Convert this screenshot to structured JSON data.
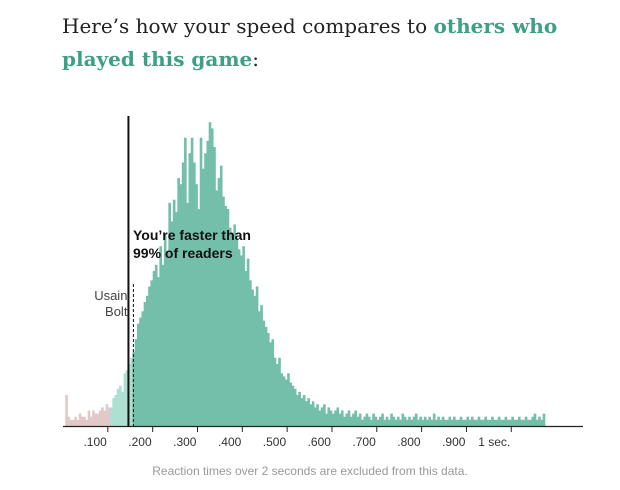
{
  "headline": {
    "lead": "Here’s how your speed compares to ",
    "accent": "others who played this game",
    "tail": ":"
  },
  "footnote": "Reaction times over 2 seconds are excluded from this data.",
  "colors": {
    "bar_main": "#74bfaa",
    "bar_light": "#aee0d2",
    "bar_faint": "#e2c9c9",
    "accent": "#3d9f86",
    "marker": "#111111"
  },
  "chart_data": {
    "type": "bar",
    "title": "",
    "xlabel": "",
    "ylabel": "",
    "x_unit": "seconds",
    "xlim": [
      0.0,
      1.16
    ],
    "ylim": [
      0,
      1
    ],
    "grid": false,
    "x_ticks": [
      {
        "value": 0.1,
        "label": ".100"
      },
      {
        "value": 0.2,
        "label": ".200"
      },
      {
        "value": 0.3,
        "label": ".300"
      },
      {
        "value": 0.4,
        "label": ".400"
      },
      {
        "value": 0.5,
        "label": ".500"
      },
      {
        "value": 0.6,
        "label": ".600"
      },
      {
        "value": 0.7,
        "label": ".700"
      },
      {
        "value": 0.8,
        "label": ".800"
      },
      {
        "value": 0.9,
        "label": ".900"
      },
      {
        "value": 1.0,
        "label": "1 sec."
      }
    ],
    "bin_width": 0.005,
    "bin_start": 0.005,
    "relative_frequency": [
      0.1,
      0.03,
      0.02,
      0.02,
      0.03,
      0.02,
      0.04,
      0.03,
      0.03,
      0.02,
      0.05,
      0.03,
      0.05,
      0.04,
      0.04,
      0.05,
      0.06,
      0.05,
      0.07,
      0.06,
      0.06,
      0.09,
      0.1,
      0.12,
      0.13,
      0.11,
      0.17,
      0.18,
      0.2,
      0.22,
      0.24,
      0.28,
      0.33,
      0.35,
      0.37,
      0.4,
      0.42,
      0.45,
      0.47,
      0.5,
      0.52,
      0.48,
      0.58,
      0.52,
      0.62,
      0.56,
      0.72,
      0.66,
      0.73,
      0.69,
      0.8,
      0.78,
      0.85,
      0.93,
      0.72,
      0.88,
      0.93,
      0.85,
      0.78,
      0.7,
      0.93,
      0.83,
      0.88,
      0.92,
      0.98,
      0.96,
      0.9,
      0.76,
      0.8,
      0.84,
      0.74,
      0.71,
      0.7,
      0.64,
      0.62,
      0.65,
      0.6,
      0.57,
      0.55,
      0.58,
      0.5,
      0.54,
      0.47,
      0.44,
      0.42,
      0.45,
      0.37,
      0.39,
      0.34,
      0.32,
      0.3,
      0.27,
      0.28,
      0.22,
      0.2,
      0.22,
      0.17,
      0.16,
      0.15,
      0.17,
      0.14,
      0.13,
      0.12,
      0.1,
      0.11,
      0.09,
      0.1,
      0.08,
      0.09,
      0.07,
      0.08,
      0.06,
      0.07,
      0.05,
      0.06,
      0.07,
      0.04,
      0.06,
      0.05,
      0.04,
      0.05,
      0.06,
      0.04,
      0.05,
      0.03,
      0.04,
      0.05,
      0.03,
      0.04,
      0.05,
      0.03,
      0.04,
      0.02,
      0.03,
      0.04,
      0.03,
      0.02,
      0.04,
      0.03,
      0.02,
      0.03,
      0.04,
      0.02,
      0.03,
      0.02,
      0.04,
      0.03,
      0.02,
      0.03,
      0.02,
      0.04,
      0.03,
      0.02,
      0.03,
      0.02,
      0.03,
      0.04,
      0.02,
      0.03,
      0.02,
      0.03,
      0.02,
      0.03,
      0.02,
      0.04,
      0.02,
      0.03,
      0.02,
      0.03,
      0.02,
      0.02,
      0.03,
      0.02,
      0.03,
      0.02,
      0.02,
      0.03,
      0.02,
      0.02,
      0.03,
      0.02,
      0.03,
      0.02,
      0.02,
      0.03,
      0.02,
      0.02,
      0.03,
      0.02,
      0.02,
      0.03,
      0.02,
      0.02,
      0.03,
      0.02,
      0.02,
      0.03,
      0.02,
      0.02,
      0.03,
      0.02,
      0.02,
      0.03,
      0.02,
      0.02,
      0.03,
      0.02,
      0.02,
      0.03,
      0.04,
      0.02,
      0.03,
      0.02,
      0.04
    ],
    "markers": [
      {
        "name": "usain-bolt",
        "value": 0.146,
        "style": "solid",
        "label_lines": [
          "Usain",
          "Bolt"
        ]
      },
      {
        "name": "your-time",
        "value": 0.157,
        "style": "dashed",
        "label_lines": [
          "You’re faster than",
          "99% of readers"
        ]
      }
    ]
  }
}
